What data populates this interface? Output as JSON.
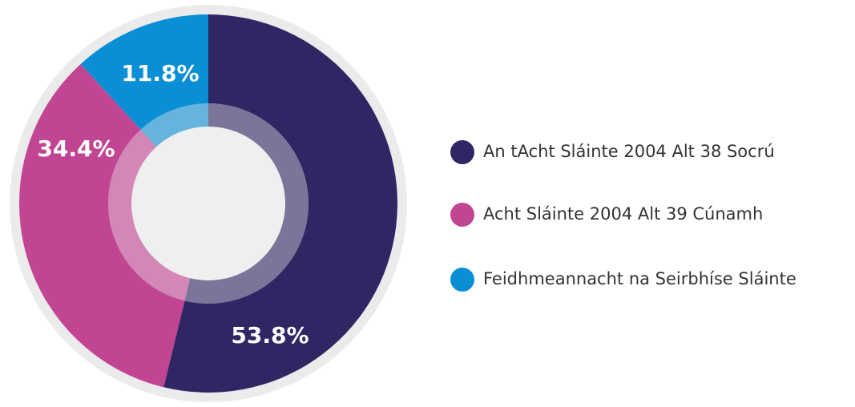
{
  "chart_data": {
    "type": "donut",
    "categories": [
      "An tAcht Sláinte 2004 Alt 38 Socrú",
      "Acht Sláinte 2004 Alt 39 Cúnamh",
      "Feidhmeannacht na Seirbhíse Sláinte"
    ],
    "values": [
      53.8,
      34.4,
      11.8
    ],
    "value_labels": [
      "53.8%",
      "34.4%",
      "11.8%"
    ],
    "colors": [
      "#2e2763",
      "#c14592",
      "#0a8fd6"
    ]
  }
}
